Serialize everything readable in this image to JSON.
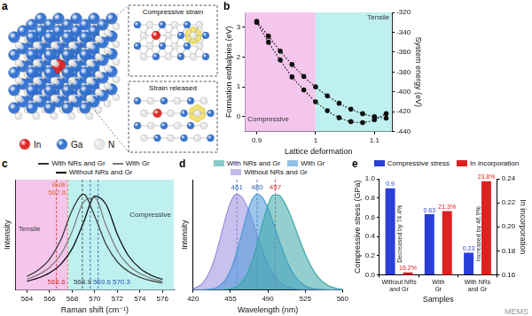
{
  "diagram": {
    "panel": "a",
    "legend": [
      {
        "label": "In",
        "color": "#e0201e"
      },
      {
        "label": "Ga",
        "color": "#2f6fd0"
      },
      {
        "label": "N",
        "color": "#e6e6e6"
      }
    ],
    "insets": [
      "Compressive strain",
      "Strain released"
    ]
  },
  "watermark": "MEMS",
  "chart_data": [
    {
      "panel": "b",
      "type": "line",
      "x_label": "Lattice deformation",
      "y_label": "Formation enthalpies (eV)",
      "y2_label": "System energy (eV)",
      "x": [
        0.9,
        0.92,
        0.94,
        0.96,
        0.98,
        1.0,
        1.02,
        1.04,
        1.06,
        1.08,
        1.1,
        1.12
      ],
      "series": [
        {
          "color": "#111111",
          "marker": "circle",
          "line_style": "dotted",
          "values": [
            3.2,
            2.7,
            2.2,
            1.75,
            1.35,
            1.0,
            0.7,
            0.45,
            0.25,
            0.1,
            0.0,
            -0.05
          ]
        },
        {
          "color": "#111111",
          "marker": "circle",
          "line_style": "dotted",
          "axis": "y2",
          "values": [
            -330,
            -350,
            -368,
            -385,
            -398,
            -410,
            -419,
            -426,
            -430,
            -431,
            -428,
            -422
          ]
        }
      ],
      "xlim": [
        0.88,
        1.13
      ],
      "xticks": [
        0.9,
        1,
        1.1
      ],
      "ylim": [
        -0.5,
        3.5
      ],
      "yticks": [
        0,
        1,
        2,
        3
      ],
      "y2lim": [
        -440,
        -320
      ],
      "y2ticks": [
        -440,
        -420,
        -400,
        -380,
        -360,
        -340,
        -320
      ],
      "grid": false,
      "regions": [
        {
          "label": "Compressive",
          "from": 0.88,
          "to": 1,
          "y": -0.2,
          "color": "#f5c6ec"
        },
        {
          "label": "Tensile",
          "from": 1,
          "to": 1.13,
          "y": 3.2,
          "color": "#bff0f0"
        }
      ]
    },
    {
      "panel": "c",
      "type": "line",
      "x_label": "Raman shift (cm⁻¹)",
      "y_label": "Intensity",
      "x": [
        564,
        565,
        566,
        567,
        568,
        569,
        570,
        571,
        572,
        573,
        574,
        575,
        576
      ],
      "series": [
        {
          "name": "With NRs and Gr",
          "color": "#333333",
          "values": [
            0.143,
            0.208,
            0.322,
            0.526,
            0.832,
            0.998,
            0.768,
            0.476,
            0.294,
            0.192,
            0.133,
            0.097,
            0.074
          ]
        },
        {
          "name": "With Gr",
          "color": "#777777",
          "values": [
            0.113,
            0.159,
            0.236,
            0.372,
            0.61,
            0.917,
            0.962,
            0.671,
            0.41,
            0.257,
            0.171,
            0.121,
            0.089
          ]
        },
        {
          "name": "Without NRs and Gr",
          "color": "#000000",
          "values": [
            0.092,
            0.125,
            0.178,
            0.269,
            0.431,
            0.703,
            0.978,
            0.891,
            0.581,
            0.354,
            0.226,
            0.153,
            0.11
          ]
        }
      ],
      "xlim": [
        563,
        577
      ],
      "xticks": [
        564,
        566,
        568,
        570,
        572,
        574,
        576
      ],
      "ylim": [
        0,
        1.15
      ],
      "tick_labels": "x",
      "grid": false,
      "legend": "top",
      "regions": [
        {
          "label": "Tensile",
          "from": 563,
          "to": 567.6,
          "y": 0.6,
          "color": "#f5c6ec"
        },
        {
          "label": "Compressive",
          "from": 567.6,
          "to": 577,
          "y": 0.75,
          "color": "#bff0f0"
        }
      ],
      "reference_lines": [
        {
          "x": 567.6,
          "y": 0.98,
          "title": "Bulk",
          "label": "567.6",
          "color": "#e07030"
        },
        {
          "x": 566.6,
          "y": 0.04,
          "label": "566.6",
          "color": "#d03020"
        },
        {
          "x": 568.9,
          "y": 0.04,
          "label": "568.9",
          "color": "#333333"
        },
        {
          "x": 569.6,
          "y": 0.04,
          "label": "569.6",
          "color": "#2255aa"
        },
        {
          "x": 570.3,
          "y": 0.04,
          "label": "570.3",
          "color": "#2255aa"
        }
      ]
    },
    {
      "panel": "d",
      "type": "area",
      "x_label": "Wavelength (nm)",
      "y_label": "Intensity",
      "x": [
        420,
        425,
        430,
        435,
        440,
        445,
        450,
        455,
        460,
        465,
        470,
        475,
        480,
        485,
        490,
        495,
        500,
        505,
        510,
        515,
        520,
        525,
        530,
        535,
        540,
        545,
        550,
        555,
        560
      ],
      "series": [
        {
          "name": "With NRs and Gr",
          "color": "#3aa8a8",
          "values": [
            0,
            0,
            0,
            0,
            0,
            0.001,
            0.004,
            0.011,
            0.03,
            0.073,
            0.156,
            0.291,
            0.479,
            0.693,
            0.882,
            0.99,
            0.989,
            0.923,
            0.81,
            0.667,
            0.516,
            0.375,
            0.256,
            0.164,
            0.099,
            0.056,
            0.03,
            0.015,
            0.007
          ]
        },
        {
          "name": "With Gr",
          "color": "#4a98d8",
          "values": [
            0,
            0,
            0.002,
            0.006,
            0.017,
            0.044,
            0.101,
            0.203,
            0.361,
            0.563,
            0.775,
            0.938,
            1,
            0.962,
            0.857,
            0.707,
            0.539,
            0.381,
            0.249,
            0.151,
            0.085,
            0.044,
            0.021,
            0.009,
            0.004,
            0.002,
            0.001,
            0,
            0
          ]
        },
        {
          "name": "Without NRs and Gr",
          "color": "#9a8ee0",
          "values": [
            0.014,
            0.037,
            0.086,
            0.178,
            0.325,
            0.521,
            0.734,
            0.912,
            0.997,
            0.976,
            0.882,
            0.739,
            0.573,
            0.411,
            0.273,
            0.168,
            0.096,
            0.05,
            0.025,
            0.011,
            0.005,
            0.002,
            0.001,
            0,
            0,
            0,
            0,
            0,
            0
          ]
        }
      ],
      "xlim": [
        420,
        560
      ],
      "xticks": [
        420,
        455,
        490,
        525,
        560
      ],
      "ylim": [
        0,
        1.15
      ],
      "tick_labels": "x",
      "grid": false,
      "legend": "top",
      "reference_lines": [
        {
          "x": 461,
          "y": 1.03,
          "label": "461",
          "color": "#3060b0"
        },
        {
          "x": 480,
          "y": 1.03,
          "label": "480",
          "color": "#3060b0"
        },
        {
          "x": 497,
          "y": 1.03,
          "label": "497",
          "color": "#d03030"
        }
      ]
    },
    {
      "panel": "e",
      "type": "bar",
      "x_label": "Samples",
      "y_label": "Compressive stress (GPa)",
      "y2_label": "In incorporation",
      "categories": [
        "Without NRs and Gr",
        "With Gr",
        "With NRs and Gr"
      ],
      "series": [
        {
          "name": "Compressive stress",
          "color": "#2a3ed8",
          "values": [
            0.9,
            0.63,
            0.23
          ]
        },
        {
          "name": "In incorporation",
          "color": "#e02020",
          "axis": "y2",
          "values": [
            0.162,
            0.213,
            0.238
          ],
          "value_labels": [
            "16.2%",
            "21.3%",
            "23.8%"
          ]
        }
      ],
      "ylim": [
        0,
        1.0
      ],
      "yticks": [
        {
          "value": 0,
          "label": "0.0"
        },
        0.2,
        0.4,
        0.6,
        0.8,
        {
          "value": 1.0,
          "label": "1.0"
        }
      ],
      "y2lim": [
        0.16,
        0.24
      ],
      "y2ticks": [
        0.16,
        0.18,
        {
          "value": 0.2,
          "label": "0.20"
        },
        0.22,
        0.24
      ],
      "grid": false,
      "legend": "top",
      "data_labels": true,
      "annotations": [
        {
          "text": "Decreased by 74.4%",
          "category": "Without NRs and Gr"
        },
        {
          "text": "Increased by 46.9%",
          "category": "With NRs and Gr"
        }
      ]
    }
  ]
}
